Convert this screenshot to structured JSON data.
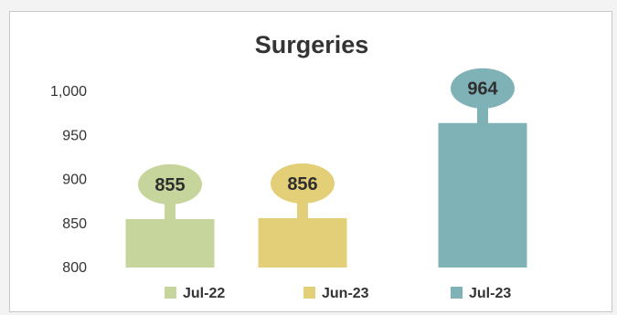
{
  "chart_data": {
    "type": "bar",
    "title": "Surgeries",
    "xlabel": "",
    "ylabel": "",
    "categories": [
      "Jul-22",
      "Jun-23",
      "Jul-23"
    ],
    "values": [
      855,
      856,
      964
    ],
    "ylim": [
      800,
      1000
    ],
    "yticks": [
      800,
      850,
      900,
      950,
      1000
    ],
    "ytick_labels": [
      "800",
      "850",
      "900",
      "950",
      "1,000"
    ],
    "colors": [
      "#c6d59b",
      "#e3cf78",
      "#7fb2b7"
    ],
    "grid": false,
    "legend": "bottom",
    "data_labels": "callout bubble above each bar"
  }
}
